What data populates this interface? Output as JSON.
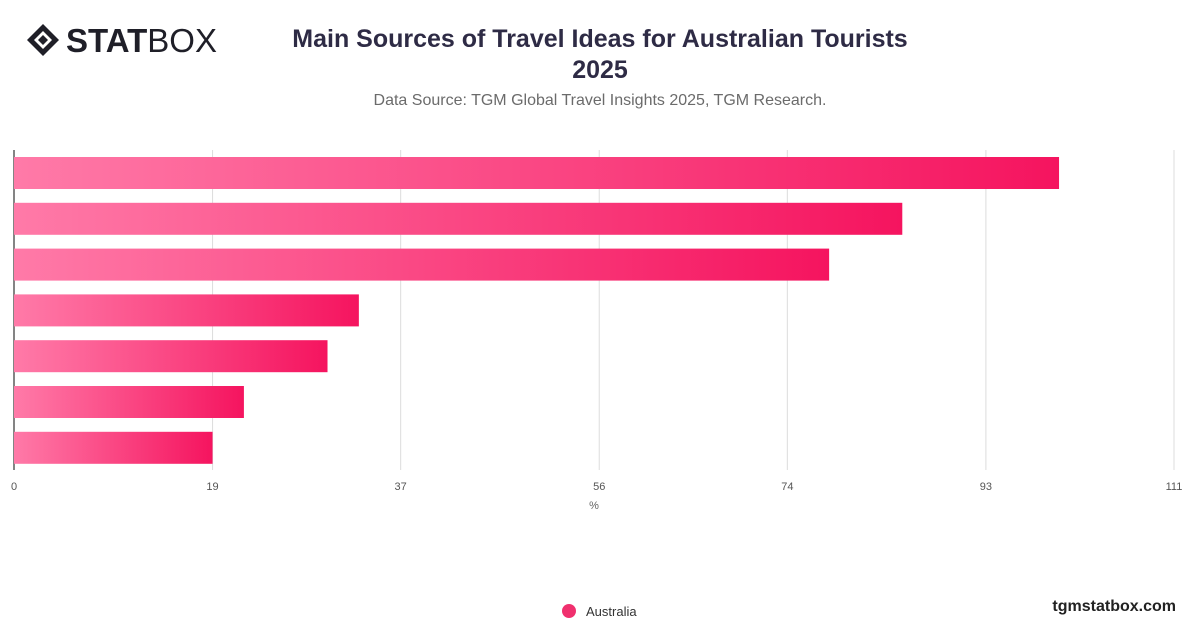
{
  "brand": {
    "logo_bold": "STAT",
    "logo_regular": "BOX",
    "watermark": "tgmstatbox.com"
  },
  "header": {
    "title_line1": "Main Sources of Travel Ideas for Australian Tourists",
    "title_line2": "2025",
    "subtitle": "Data Source: TGM Global Travel Insights 2025, TGM Research."
  },
  "colors": {
    "bar_start": "#ff7aa8",
    "bar_end": "#f5145f",
    "legend_dot": "#f0306e",
    "grid": "#dcdcdc"
  },
  "chart_data": {
    "type": "bar",
    "orientation": "horizontal",
    "title": "Main Sources of Travel Ideas for Australian Tourists 2025",
    "subtitle": "Data Source: TGM Global Travel Insights 2025, TGM Research.",
    "xlabel": "%",
    "ylabel": "",
    "xlim": [
      0,
      111
    ],
    "xticks": [
      "0",
      "19",
      "37",
      "56",
      "74",
      "93",
      "111"
    ],
    "categories": [
      "",
      "",
      "",
      "",
      "",
      "",
      ""
    ],
    "series": [
      {
        "name": "Australia",
        "values": [
          100,
          85,
          78,
          33,
          30,
          22,
          19
        ]
      }
    ],
    "legend_position": "bottom-center",
    "grid": true
  }
}
